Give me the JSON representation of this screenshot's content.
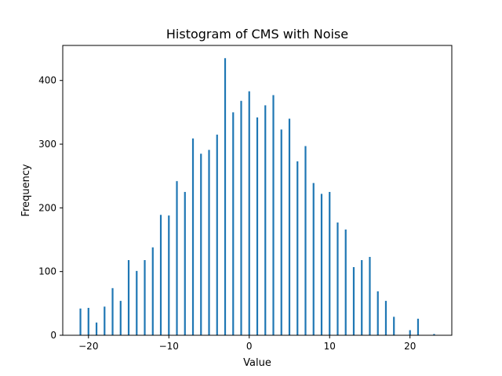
{
  "chart_data": {
    "type": "bar",
    "title": "Histogram of CMS with Noise",
    "xlabel": "Value",
    "ylabel": "Frequency",
    "xlim": [
      -23.2,
      25.2
    ],
    "ylim": [
      0,
      455
    ],
    "grid": false,
    "bar_color": "#1f77b4",
    "x_ticks": [
      -20,
      -10,
      0,
      10,
      20
    ],
    "x_tick_labels": [
      "−20",
      "−10",
      "0",
      "10",
      "20"
    ],
    "y_ticks": [
      0,
      100,
      200,
      300,
      400
    ],
    "y_tick_labels": [
      "0",
      "100",
      "200",
      "300",
      "400"
    ],
    "x": [
      -21,
      -20,
      -19,
      -18,
      -17,
      -16,
      -15,
      -14,
      -13,
      -12,
      -11,
      -10,
      -9,
      -8,
      -7,
      -6,
      -5,
      -4,
      -3,
      -2,
      -1,
      0,
      1,
      2,
      3,
      4,
      5,
      6,
      7,
      8,
      9,
      10,
      11,
      12,
      13,
      14,
      15,
      16,
      17,
      18,
      19,
      20,
      21,
      22,
      23
    ],
    "values": [
      42,
      43,
      20,
      45,
      74,
      54,
      118,
      101,
      118,
      138,
      189,
      188,
      242,
      225,
      309,
      285,
      291,
      315,
      435,
      350,
      368,
      383,
      342,
      361,
      377,
      323,
      340,
      273,
      297,
      239,
      222,
      225,
      177,
      166,
      107,
      118,
      123,
      69,
      54,
      29,
      0,
      8,
      26,
      0,
      2
    ]
  }
}
